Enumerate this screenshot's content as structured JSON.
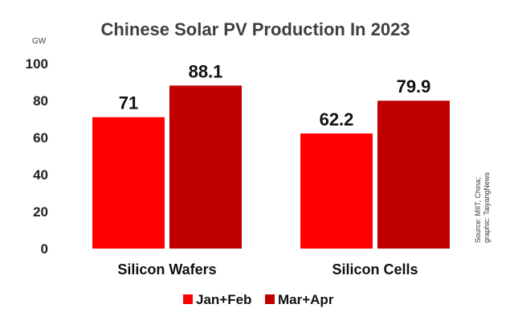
{
  "chart_data": {
    "type": "bar",
    "title": "Chinese Solar PV Production In 2023",
    "ylabel": "GW",
    "ylim": [
      0,
      100
    ],
    "yticks": [
      0,
      20,
      40,
      60,
      80,
      100
    ],
    "categories": [
      "Silicon Wafers",
      "Silicon Cells"
    ],
    "series": [
      {
        "name": "Jan+Feb",
        "values": [
          71,
          62.2
        ],
        "color": "#ff0000"
      },
      {
        "name": "Mar+Apr",
        "values": [
          88.1,
          79.9
        ],
        "color": "#c00000"
      }
    ],
    "data_labels": [
      [
        "71",
        "88.1"
      ],
      [
        "62.2",
        "79.9"
      ]
    ],
    "legend": "bottom"
  },
  "source": {
    "line1": "Source: MIIT, China;",
    "line2": "graphic: TaiyangNews"
  }
}
